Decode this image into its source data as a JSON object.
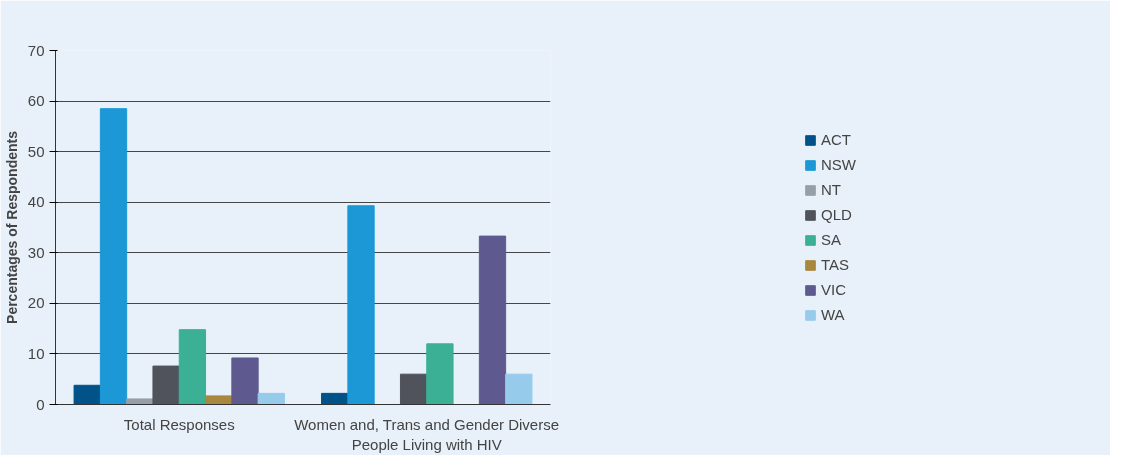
{
  "chart_data": {
    "type": "bar",
    "ylabel": "Percentages of Respondents",
    "categories": [
      "Total Responses",
      "Women and, Trans and Gender Diverse People Living with HIV"
    ],
    "series": [
      {
        "name": "ACT",
        "color": "#005288",
        "values": [
          3.8,
          2.2
        ]
      },
      {
        "name": "NSW",
        "color": "#1b98d5",
        "values": [
          58.5,
          39.3
        ]
      },
      {
        "name": "NT",
        "color": "#979ea8",
        "values": [
          1.1,
          null
        ]
      },
      {
        "name": "QLD",
        "color": "#50535b",
        "values": [
          7.6,
          6.0
        ]
      },
      {
        "name": "SA",
        "color": "#3bb095",
        "values": [
          14.8,
          12.0
        ]
      },
      {
        "name": "TAS",
        "color": "#a7883e",
        "values": [
          1.7,
          null
        ]
      },
      {
        "name": "VIC",
        "color": "#5e5a8f",
        "values": [
          9.2,
          33.3
        ]
      },
      {
        "name": "WA",
        "color": "#96cbeb",
        "values": [
          2.2,
          6.0
        ]
      }
    ],
    "ylim": [
      0,
      70
    ],
    "yticks": [
      0,
      10,
      20,
      30,
      40,
      50,
      60,
      70
    ],
    "grid": "y",
    "legend": "right"
  }
}
